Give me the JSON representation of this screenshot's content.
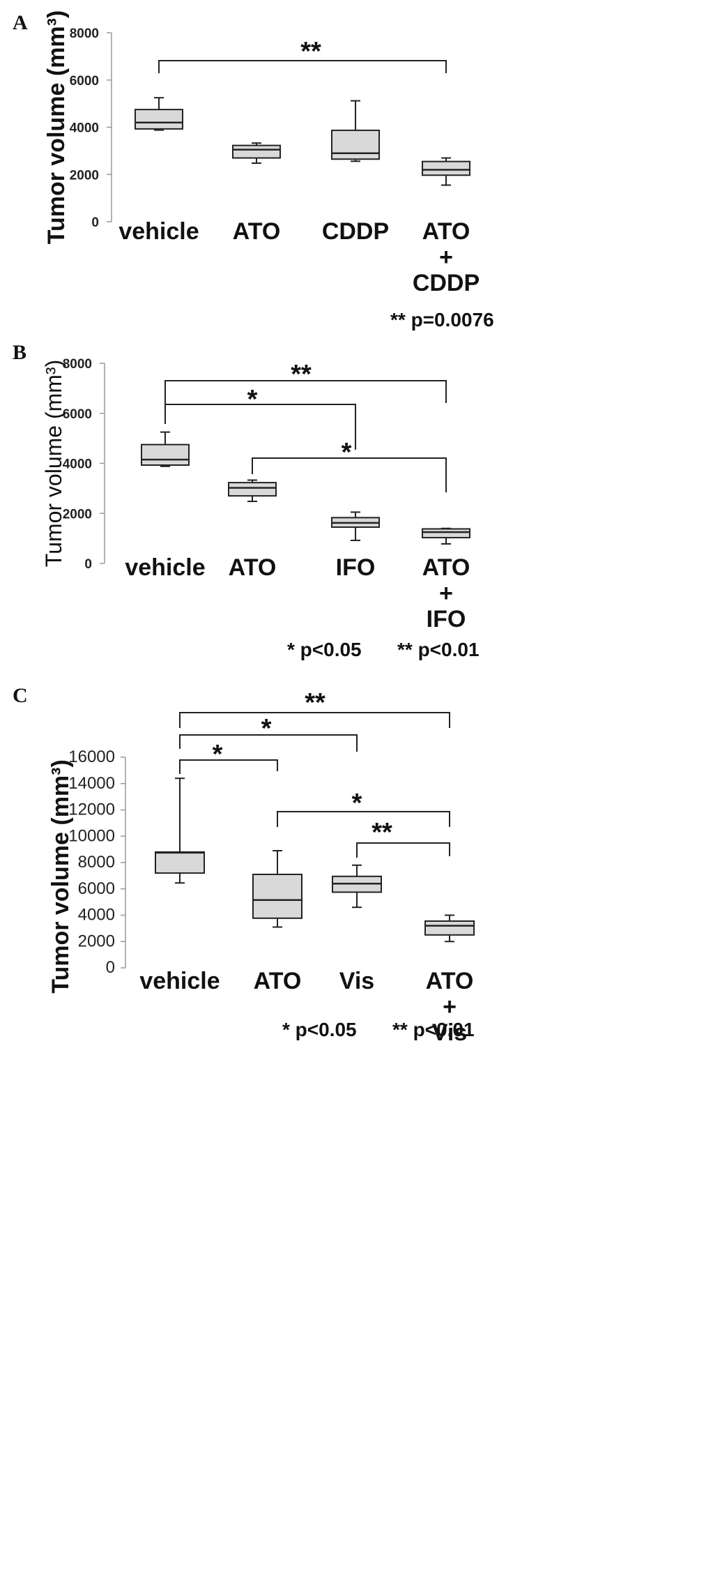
{
  "chart_data": [
    {
      "panel": "A",
      "type": "box",
      "ylabel": "Tumor volume (mm³)",
      "ylim": [
        0,
        8000
      ],
      "yticks": [
        "0",
        "2000",
        "4000",
        "6000",
        "8000"
      ],
      "categories": [
        [
          "vehicle"
        ],
        [
          "ATO"
        ],
        [
          "CDDP"
        ],
        [
          "ATO",
          "+",
          "CDDP"
        ]
      ],
      "boxes": [
        {
          "min": 3880,
          "q1": 3930,
          "median": 4200,
          "q3": 4750,
          "max": 5250
        },
        {
          "min": 2480,
          "q1": 2700,
          "median": 3050,
          "q3": 3230,
          "max": 3330
        },
        {
          "min": 2560,
          "q1": 2650,
          "median": 2900,
          "q3": 3870,
          "max": 5120
        },
        {
          "min": 1550,
          "q1": 1970,
          "median": 2200,
          "q3": 2550,
          "max": 2700
        }
      ],
      "comparisons": [
        {
          "from": 0,
          "to": 3,
          "label": "**"
        }
      ],
      "footnotes": [
        "** p=0.0076"
      ]
    },
    {
      "panel": "B",
      "type": "box",
      "ylabel": "Tumor volume (mm³)",
      "ylim": [
        0,
        8000
      ],
      "yticks": [
        "0",
        "2000",
        "4000",
        "6000",
        "8000"
      ],
      "categories": [
        [
          "vehicle"
        ],
        [
          "ATO"
        ],
        [
          "IFO"
        ],
        [
          "ATO",
          "+",
          "IFO"
        ]
      ],
      "boxes": [
        {
          "min": 3880,
          "q1": 3930,
          "median": 4150,
          "q3": 4750,
          "max": 5250
        },
        {
          "min": 2480,
          "q1": 2700,
          "median": 3020,
          "q3": 3230,
          "max": 3330
        },
        {
          "min": 920,
          "q1": 1450,
          "median": 1620,
          "q3": 1830,
          "max": 2050
        },
        {
          "min": 780,
          "q1": 1030,
          "median": 1250,
          "q3": 1380,
          "max": 1400
        }
      ],
      "comparisons": [
        {
          "from": 0,
          "to": 3,
          "label": "**"
        },
        {
          "from": 0,
          "to": 2,
          "label": "*"
        },
        {
          "from": 1,
          "to": 3,
          "label": "*"
        }
      ],
      "footnotes": [
        "* p<0.05",
        "** p<0.01"
      ]
    },
    {
      "panel": "C",
      "type": "box",
      "ylabel": "Tumor volume (mm³)",
      "ylim": [
        0,
        16000
      ],
      "yticks": [
        "0",
        "2000",
        "4000",
        "6000",
        "8000",
        "10000",
        "12000",
        "14000",
        "16000"
      ],
      "categories": [
        [
          "vehicle"
        ],
        [
          "ATO"
        ],
        [
          "Vis"
        ],
        [
          "ATO",
          "+",
          "Vis"
        ]
      ],
      "boxes": [
        {
          "min": 6450,
          "q1": 7200,
          "median": 8750,
          "q3": 8800,
          "max": 14400
        },
        {
          "min": 3100,
          "q1": 3770,
          "median": 5150,
          "q3": 7100,
          "max": 8900
        },
        {
          "min": 4600,
          "q1": 5750,
          "median": 6400,
          "q3": 6950,
          "max": 7800
        },
        {
          "min": 2000,
          "q1": 2500,
          "median": 3200,
          "q3": 3550,
          "max": 4000
        }
      ],
      "comparisons": [
        {
          "from": 0,
          "to": 3,
          "label": "**"
        },
        {
          "from": 0,
          "to": 2,
          "label": "*"
        },
        {
          "from": 0,
          "to": 1,
          "label": "*"
        },
        {
          "from": 1,
          "to": 3,
          "label": "*"
        },
        {
          "from": 2,
          "to": 3,
          "label": "**"
        }
      ],
      "footnotes": [
        "* p<0.05",
        "** p<0.01"
      ]
    }
  ]
}
